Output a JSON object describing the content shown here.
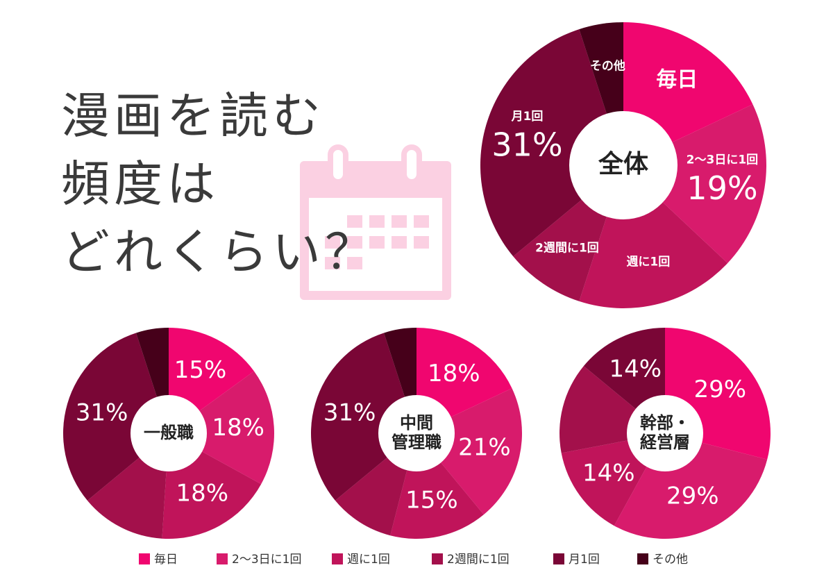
{
  "title_lines": [
    "漫画を読む",
    "頻度は",
    "どれくらい？"
  ],
  "chart_data": [
    {
      "type": "pie",
      "title": [
        "全体"
      ],
      "categories": [
        "毎日",
        "2〜3日に1回",
        "週に1回",
        "2週間に1回",
        "月1回",
        "その他"
      ],
      "values": [
        18,
        19,
        18,
        9,
        31,
        5
      ],
      "value_labels": [
        null,
        "19%",
        null,
        null,
        "31%",
        null
      ],
      "colors": [
        "#f0066f",
        "#d81b6c",
        "#c0145a",
        "#a3104b",
        "#7a0636",
        "#46001a"
      ]
    },
    {
      "type": "pie",
      "title": [
        "一般職"
      ],
      "categories": [
        "毎日",
        "2〜3日に1回",
        "週に1回",
        "2週間に1回",
        "月1回",
        "その他"
      ],
      "values": [
        15,
        18,
        18,
        13,
        31,
        5
      ],
      "value_labels": [
        "15%",
        "18%",
        "18%",
        null,
        "31%",
        null
      ],
      "colors": [
        "#f0066f",
        "#d81b6c",
        "#c0145a",
        "#a3104b",
        "#7a0636",
        "#46001a"
      ]
    },
    {
      "type": "pie",
      "title": [
        "中間",
        "管理職"
      ],
      "categories": [
        "毎日",
        "2〜3日に1回",
        "週に1回",
        "2週間に1回",
        "月1回",
        "その他"
      ],
      "values": [
        18,
        21,
        15,
        10,
        31,
        5
      ],
      "value_labels": [
        "18%",
        "21%",
        "15%",
        null,
        "31%",
        null
      ],
      "colors": [
        "#f0066f",
        "#d81b6c",
        "#c0145a",
        "#a3104b",
        "#7a0636",
        "#46001a"
      ]
    },
    {
      "type": "pie",
      "title": [
        "幹部・",
        "経営層"
      ],
      "categories": [
        "毎日",
        "2〜3日に1回",
        "週に1回",
        "2週間に1回",
        "月1回",
        "その他"
      ],
      "values": [
        29,
        29,
        14,
        14,
        14,
        0
      ],
      "value_labels": [
        "29%",
        "29%",
        "14%",
        null,
        "14%",
        null
      ],
      "colors": [
        "#f0066f",
        "#d81b6c",
        "#c0145a",
        "#a3104b",
        "#7a0636",
        "#46001a"
      ]
    }
  ]
}
